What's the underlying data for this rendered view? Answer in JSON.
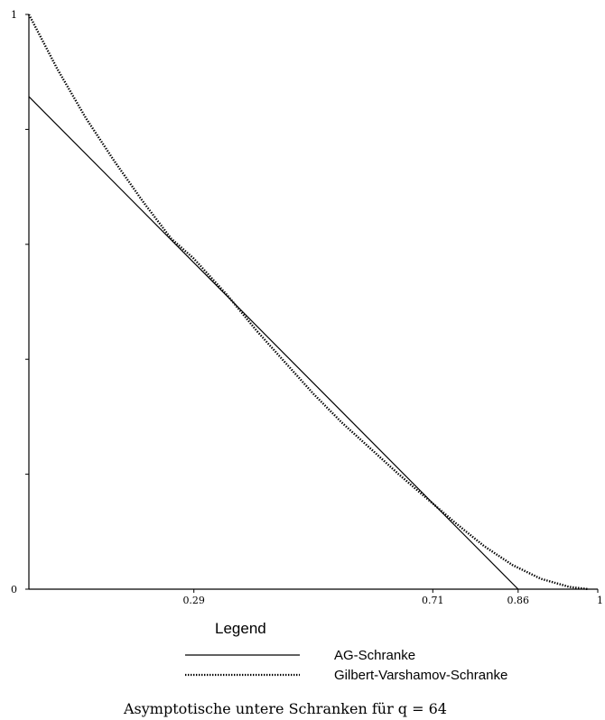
{
  "chart_data": {
    "type": "line",
    "title": "",
    "xlabel": "",
    "ylabel": "",
    "xlim": [
      0,
      1
    ],
    "ylim": [
      0,
      1
    ],
    "x_ticks": [
      {
        "value": 0.29,
        "label": "0.29"
      },
      {
        "value": 0.71,
        "label": "0.71"
      },
      {
        "value": 0.86,
        "label": "0.86"
      },
      {
        "value": 1.0,
        "label": "1"
      }
    ],
    "y_ticks": [
      {
        "value": 0,
        "label": "0"
      },
      {
        "value": 0.2,
        "label": ""
      },
      {
        "value": 0.4,
        "label": ""
      },
      {
        "value": 0.6,
        "label": ""
      },
      {
        "value": 0.8,
        "label": ""
      },
      {
        "value": 1,
        "label": "1"
      }
    ],
    "grid": false,
    "legend": {
      "title": "Legend",
      "placement": "bottom"
    },
    "series": [
      {
        "name": "AG-Schranke",
        "style": "solid",
        "color": "#000000",
        "x": [
          0,
          0.86
        ],
        "y": [
          0.857,
          0
        ]
      },
      {
        "name": "Gilbert-Varshamov-Schranke",
        "style": "dotted",
        "color": "#000000",
        "x": [
          0,
          0.05,
          0.1,
          0.15,
          0.2,
          0.25,
          0.29,
          0.35,
          0.4,
          0.45,
          0.5,
          0.55,
          0.6,
          0.65,
          0.71,
          0.75,
          0.8,
          0.85,
          0.9,
          0.95,
          0.984
        ],
        "y": [
          1,
          0.905,
          0.82,
          0.745,
          0.675,
          0.61,
          0.575,
          0.51,
          0.45,
          0.395,
          0.34,
          0.29,
          0.245,
          0.2,
          0.149,
          0.115,
          0.075,
          0.042,
          0.018,
          0.004,
          0
        ]
      }
    ],
    "caption": "Asymptotische untere Schranken für q = 64"
  }
}
